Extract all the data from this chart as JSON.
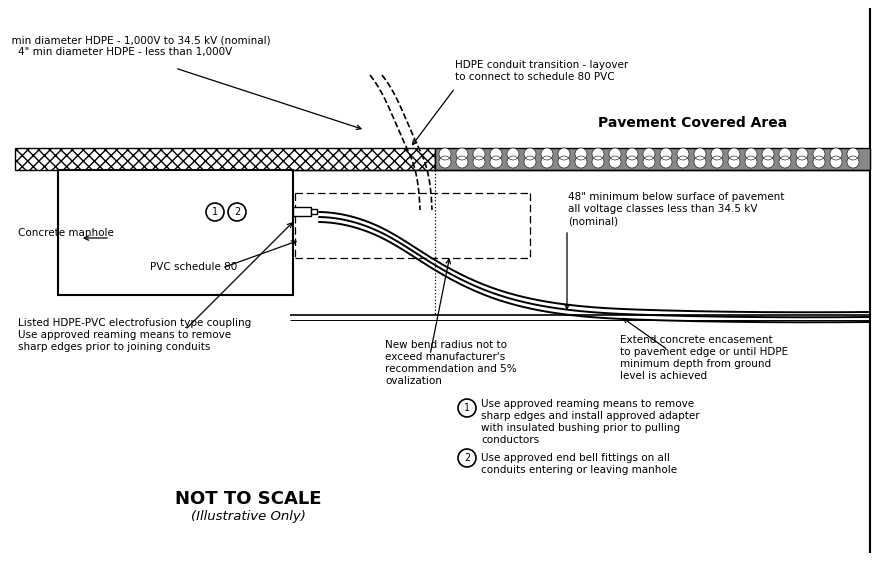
{
  "bg_color": "#ffffff",
  "line_color": "#000000",
  "fig_width": 8.83,
  "fig_height": 5.61,
  "annotations": {
    "hdpe_label_line1": "  min diameter HDPE - 1,000V to 34.5 kV (nominal)",
    "hdpe_label_line2": "    4\" min diameter HDPE - less than 1,000V",
    "conduit_transition": "HDPE conduit transition - layover\nto connect to schedule 80 PVC",
    "concrete_manhole": "Concrete manhole",
    "pvc_schedule": "PVC schedule 80",
    "electrofusion_line1": "Listed HDPE-PVC electrofusion type coupling",
    "electrofusion_line2": "Use approved reaming means to remove",
    "electrofusion_line3": "sharp edges prior to joining conduits",
    "bend_radius_line1": "New bend radius not to",
    "bend_radius_line2": "exceed manufacturer's",
    "bend_radius_line3": "recommendation and 5%",
    "bend_radius_line4": "ovalization",
    "extend_concrete_line1": "Extend concrete encasement",
    "extend_concrete_line2": "to pavement edge or until HDPE",
    "extend_concrete_line3": "minimum depth from ground",
    "extend_concrete_line4": "level is achieved",
    "min_depth_line1": "48\" minimum below surface of pavement",
    "min_depth_line2": "all voltage classes less than 34.5 kV",
    "min_depth_line3": "(nominal)",
    "pavement_label": "Pavement Covered Area",
    "legend1_line1": "Use approved reaming means to remove",
    "legend1_line2": "sharp edges and install approved adapter",
    "legend1_line3": "with insulated bushing prior to pulling",
    "legend1_line4": "conductors",
    "legend2_line1": "Use approved end bell fittings on all",
    "legend2_line2": "conduits entering or leaving manhole",
    "title": "NOT TO SCALE",
    "subtitle": "(Illustrative Only)"
  }
}
